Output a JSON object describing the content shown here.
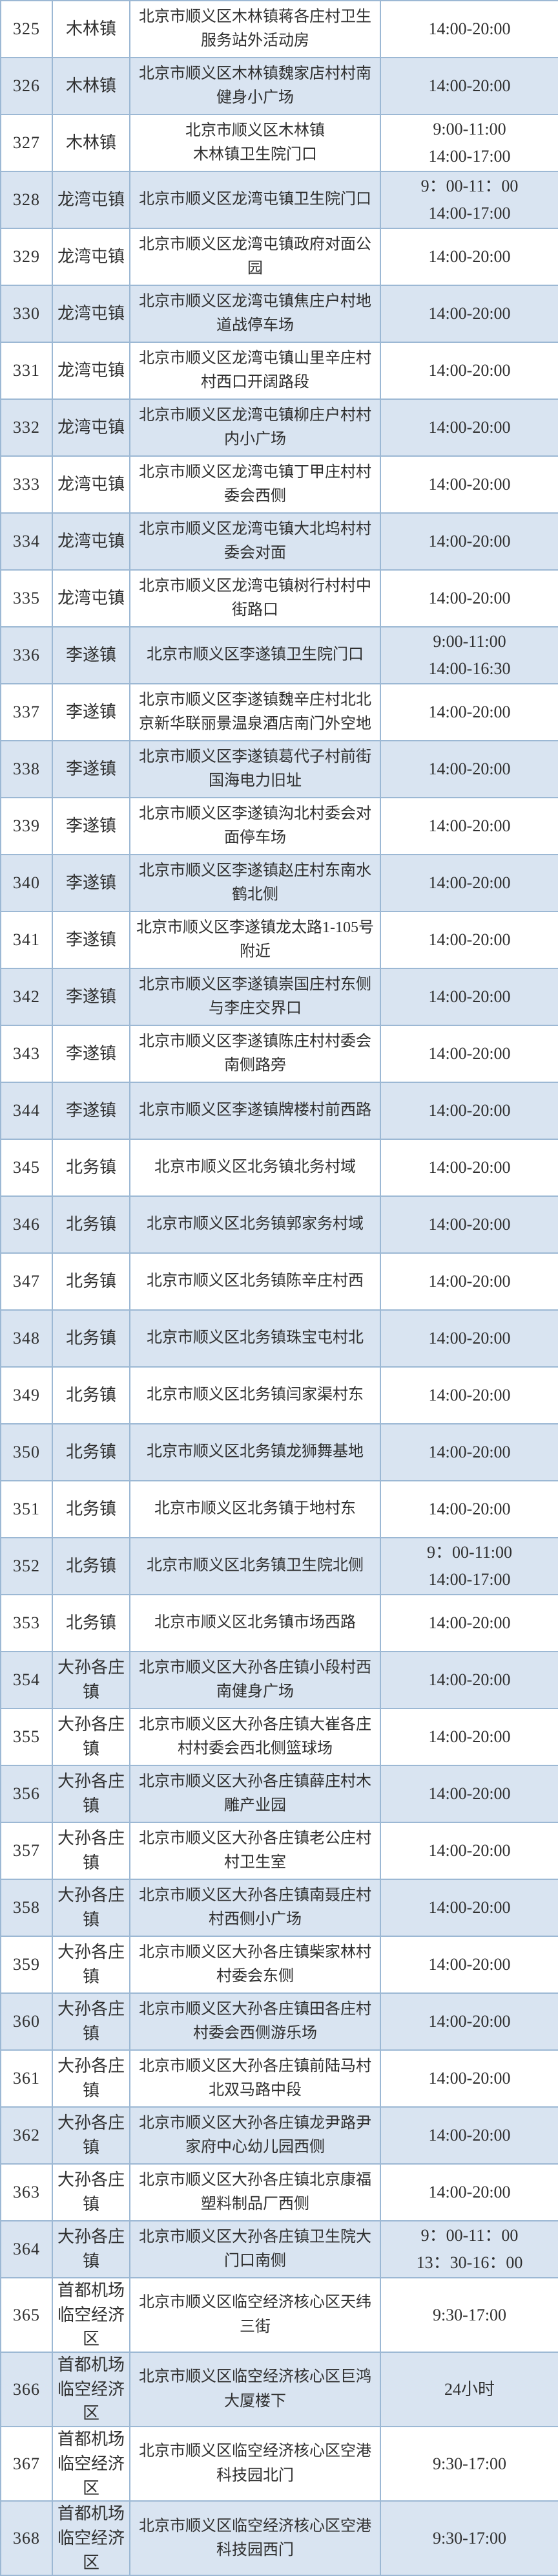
{
  "colors": {
    "row_base": "#ffffff",
    "row_alt": "#d9e4f1",
    "border": "#9cb8d4",
    "text": "#2f2f2f"
  },
  "table": {
    "rows": [
      {
        "no": "325",
        "town": "木林镇",
        "address": "北京市顺义区木林镇蒋各庄村卫生服务站外活动房",
        "time": "14:00-20:00",
        "tall": false
      },
      {
        "no": "326",
        "town": "木林镇",
        "address": "北京市顺义区木林镇魏家店村村南健身小广场",
        "time": "14:00-20:00",
        "tall": false
      },
      {
        "no": "327",
        "town": "木林镇",
        "address": "北京市顺义区木林镇\n木林镇卫生院门口",
        "time": "9:00-11:00\n14:00-17:00",
        "tall": false
      },
      {
        "no": "328",
        "town": "龙湾屯镇",
        "address": "北京市顺义区龙湾屯镇卫生院门口",
        "time": "9：00-11：00\n14:00-17:00",
        "tall": false
      },
      {
        "no": "329",
        "town": "龙湾屯镇",
        "address": "北京市顺义区龙湾屯镇政府对面公园",
        "time": "14:00-20:00",
        "tall": false
      },
      {
        "no": "330",
        "town": "龙湾屯镇",
        "address": "北京市顺义区龙湾屯镇焦庄户村地道战停车场",
        "time": "14:00-20:00",
        "tall": false
      },
      {
        "no": "331",
        "town": "龙湾屯镇",
        "address": "北京市顺义区龙湾屯镇山里辛庄村村西口开阔路段",
        "time": "14:00-20:00",
        "tall": false
      },
      {
        "no": "332",
        "town": "龙湾屯镇",
        "address": "北京市顺义区龙湾屯镇柳庄户村村内小广场",
        "time": "14:00-20:00",
        "tall": false
      },
      {
        "no": "333",
        "town": "龙湾屯镇",
        "address": "北京市顺义区龙湾屯镇丁甲庄村村委会西侧",
        "time": "14:00-20:00",
        "tall": false
      },
      {
        "no": "334",
        "town": "龙湾屯镇",
        "address": "北京市顺义区龙湾屯镇大北坞村村委会对面",
        "time": "14:00-20:00",
        "tall": false
      },
      {
        "no": "335",
        "town": "龙湾屯镇",
        "address": "北京市顺义区龙湾屯镇树行村村中街路口",
        "time": "14:00-20:00",
        "tall": false
      },
      {
        "no": "336",
        "town": "李遂镇",
        "address": "北京市顺义区李遂镇卫生院门口",
        "time": "9:00-11:00\n14:00-16:30",
        "tall": false
      },
      {
        "no": "337",
        "town": "李遂镇",
        "address": "北京市顺义区李遂镇魏辛庄村北北京新华联丽景温泉酒店南门外空地",
        "time": "14:00-20:00",
        "tall": false
      },
      {
        "no": "338",
        "town": "李遂镇",
        "address": "北京市顺义区李遂镇葛代子村前街国海电力旧址",
        "time": "14:00-20:00",
        "tall": false
      },
      {
        "no": "339",
        "town": "李遂镇",
        "address": "北京市顺义区李遂镇沟北村委会对面停车场",
        "time": "14:00-20:00",
        "tall": false
      },
      {
        "no": "340",
        "town": "李遂镇",
        "address": "北京市顺义区李遂镇赵庄村东南水鹤北侧",
        "time": "14:00-20:00",
        "tall": false
      },
      {
        "no": "341",
        "town": "李遂镇",
        "address": "北京市顺义区李遂镇龙太路1-105号附近",
        "time": "14:00-20:00",
        "tall": false
      },
      {
        "no": "342",
        "town": "李遂镇",
        "address": "北京市顺义区李遂镇崇国庄村东侧与李庄交界口",
        "time": "14:00-20:00",
        "tall": false
      },
      {
        "no": "343",
        "town": "李遂镇",
        "address": "北京市顺义区李遂镇陈庄村村委会南侧路旁",
        "time": "14:00-20:00",
        "tall": false
      },
      {
        "no": "344",
        "town": "李遂镇",
        "address": "北京市顺义区李遂镇牌楼村前西路",
        "time": "14:00-20:00",
        "tall": false
      },
      {
        "no": "345",
        "town": "北务镇",
        "address": "北京市顺义区北务镇北务村域",
        "time": "14:00-20:00",
        "tall": false
      },
      {
        "no": "346",
        "town": "北务镇",
        "address": "北京市顺义区北务镇郭家务村域",
        "time": "14:00-20:00",
        "tall": false
      },
      {
        "no": "347",
        "town": "北务镇",
        "address": "北京市顺义区北务镇陈辛庄村西",
        "time": "14:00-20:00",
        "tall": false
      },
      {
        "no": "348",
        "town": "北务镇",
        "address": "北京市顺义区北务镇珠宝屯村北",
        "time": "14:00-20:00",
        "tall": false
      },
      {
        "no": "349",
        "town": "北务镇",
        "address": "北京市顺义区北务镇闫家渠村东",
        "time": "14:00-20:00",
        "tall": false
      },
      {
        "no": "350",
        "town": "北务镇",
        "address": "北京市顺义区北务镇龙狮舞基地",
        "time": "14:00-20:00",
        "tall": false
      },
      {
        "no": "351",
        "town": "北务镇",
        "address": "北京市顺义区北务镇于地村东",
        "time": "14:00-20:00",
        "tall": false
      },
      {
        "no": "352",
        "town": "北务镇",
        "address": "北京市顺义区北务镇卫生院北侧",
        "time": "9：00-11:00\n14:00-17:00",
        "tall": false
      },
      {
        "no": "353",
        "town": "北务镇",
        "address": "北京市顺义区北务镇市场西路",
        "time": "14:00-20:00",
        "tall": false
      },
      {
        "no": "354",
        "town": "大孙各庄镇",
        "address": "北京市顺义区大孙各庄镇小段村西南健身广场",
        "time": "14:00-20:00",
        "tall": false
      },
      {
        "no": "355",
        "town": "大孙各庄镇",
        "address": "北京市顺义区大孙各庄镇大崔各庄村村委会西北侧篮球场",
        "time": "14:00-20:00",
        "tall": false
      },
      {
        "no": "356",
        "town": "大孙各庄镇",
        "address": "北京市顺义区大孙各庄镇薛庄村木雕产业园",
        "time": "14:00-20:00",
        "tall": false
      },
      {
        "no": "357",
        "town": "大孙各庄镇",
        "address": "北京市顺义区大孙各庄镇老公庄村村卫生室",
        "time": "14:00-20:00",
        "tall": false
      },
      {
        "no": "358",
        "town": "大孙各庄镇",
        "address": "北京市顺义区大孙各庄镇南聂庄村村西侧小广场",
        "time": "14:00-20:00",
        "tall": false
      },
      {
        "no": "359",
        "town": "大孙各庄镇",
        "address": "北京市顺义区大孙各庄镇柴家林村村委会东侧",
        "time": "14:00-20:00",
        "tall": false
      },
      {
        "no": "360",
        "town": "大孙各庄镇",
        "address": "北京市顺义区大孙各庄镇田各庄村村委会西侧游乐场",
        "time": "14:00-20:00",
        "tall": false
      },
      {
        "no": "361",
        "town": "大孙各庄镇",
        "address": "北京市顺义区大孙各庄镇前陆马村北双马路中段",
        "time": "14:00-20:00",
        "tall": false
      },
      {
        "no": "362",
        "town": "大孙各庄镇",
        "address": "北京市顺义区大孙各庄镇龙尹路尹家府中心幼儿园西侧",
        "time": "14:00-20:00",
        "tall": false
      },
      {
        "no": "363",
        "town": "大孙各庄镇",
        "address": "北京市顺义区大孙各庄镇北京康福塑料制品厂西侧",
        "time": "14:00-20:00",
        "tall": false
      },
      {
        "no": "364",
        "town": "大孙各庄镇",
        "address": "北京市顺义区大孙各庄镇卫生院大门口南侧",
        "time": "9：00-11：00\n13：30-16：00",
        "tall": false
      },
      {
        "no": "365",
        "town": "首都机场临空经济区",
        "address": "北京市顺义区临空经济核心区天纬三街",
        "time": "9:30-17:00",
        "tall": true
      },
      {
        "no": "366",
        "town": "首都机场临空经济区",
        "address": "北京市顺义区临空经济核心区巨鸿大厦楼下",
        "time": "24小时",
        "tall": true
      },
      {
        "no": "367",
        "town": "首都机场临空经济区",
        "address": "北京市顺义区临空经济核心区空港科技园北门",
        "time": "9:30-17:00",
        "tall": true
      },
      {
        "no": "368",
        "town": "首都机场临空经济区",
        "address": "北京市顺义区临空经济核心区空港科技园西门",
        "time": "9:30-17:00",
        "tall": true
      }
    ]
  }
}
